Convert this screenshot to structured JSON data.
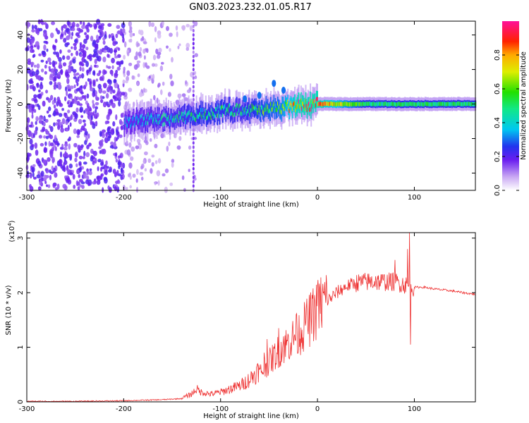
{
  "title": "GN03.2023.232.01.05.R17",
  "chart_data": [
    {
      "type": "heatmap",
      "xlabel": "Height of straight line (km)",
      "ylabel": "Frequency (Hz)",
      "xlim": [
        -300,
        163
      ],
      "ylim": [
        -50,
        48
      ],
      "xticks": [
        -300,
        -200,
        -100,
        0,
        100
      ],
      "yticks": [
        -40,
        -20,
        0,
        20,
        40
      ],
      "colorbar": {
        "label": "Normalized spectral amplitude",
        "range": [
          0,
          1
        ],
        "ticks": [
          0.0,
          0.2,
          0.4,
          0.6,
          0.8
        ],
        "tick_labels": [
          "0.0",
          "0.2",
          "0.4",
          "0.6",
          "0.8"
        ],
        "colormap": "white-purple-blue-cyan-green-yellow-red-magenta"
      },
      "ridge": {
        "description_points_x": [
          -200,
          -180,
          -160,
          -140,
          -120,
          -100,
          -80,
          -60,
          -40,
          -20,
          0,
          50,
          100,
          163
        ],
        "center_frequency": [
          -11,
          -9,
          -9,
          -8,
          -6,
          -4,
          -3,
          -4,
          -2,
          -1,
          0,
          0,
          0,
          0
        ],
        "peak_amplitude": [
          0.35,
          0.4,
          0.42,
          0.45,
          0.5,
          0.5,
          0.45,
          0.55,
          0.6,
          0.85,
          0.85,
          0.5,
          0.5,
          0.5
        ]
      },
      "scatter_noise_region_x": [
        -300,
        -130
      ]
    },
    {
      "type": "line",
      "xlabel": "Height of straight line (km)",
      "ylabel": "SNR (10 * v/v)",
      "y_multiplier": "(x10",
      "y_multiplier_exp": "4",
      "y_multiplier_close": ")",
      "xlim": [
        -300,
        163
      ],
      "ylim": [
        0,
        3.1
      ],
      "xticks": [
        -300,
        -200,
        -100,
        0,
        100
      ],
      "yticks": [
        0,
        1,
        2,
        3
      ],
      "color": "#ee3333",
      "series": [
        {
          "x": [
            -300,
            -250,
            -200,
            -180,
            -160,
            -140,
            -130,
            -125,
            -120,
            -110,
            -100,
            -90,
            -80,
            -70,
            -60,
            -50,
            -40,
            -30,
            -20,
            -10,
            0,
            10,
            20,
            30,
            40,
            50,
            60,
            70,
            80,
            90,
            95,
            100,
            110,
            120,
            130,
            140,
            150,
            163
          ],
          "y": [
            0.01,
            0.01,
            0.02,
            0.03,
            0.04,
            0.06,
            0.12,
            0.2,
            0.15,
            0.12,
            0.15,
            0.2,
            0.25,
            0.35,
            0.5,
            0.7,
            0.9,
            1.05,
            1.2,
            1.4,
            1.65,
            1.85,
            2.0,
            2.12,
            2.18,
            2.2,
            2.2,
            2.2,
            2.2,
            2.15,
            2.1,
            2.1,
            2.1,
            2.07,
            2.05,
            2.03,
            2.0,
            1.97
          ],
          "spikes": [
            {
              "x": -55,
              "y": 0.9
            },
            {
              "x": -52,
              "y": 1.15
            },
            {
              "x": -40,
              "y": 1.35
            },
            {
              "x": -35,
              "y": 1.2
            },
            {
              "x": -22,
              "y": 1.6
            },
            {
              "x": -12,
              "y": 1.45
            },
            {
              "x": 0,
              "y": 2.1
            },
            {
              "x": 60,
              "y": 2.3
            },
            {
              "x": 80,
              "y": 2.6
            },
            {
              "x": 93,
              "y": 2.8
            },
            {
              "x": 95,
              "y": 3.1
            },
            {
              "x": 96,
              "y": 1.05
            }
          ]
        }
      ]
    }
  ]
}
